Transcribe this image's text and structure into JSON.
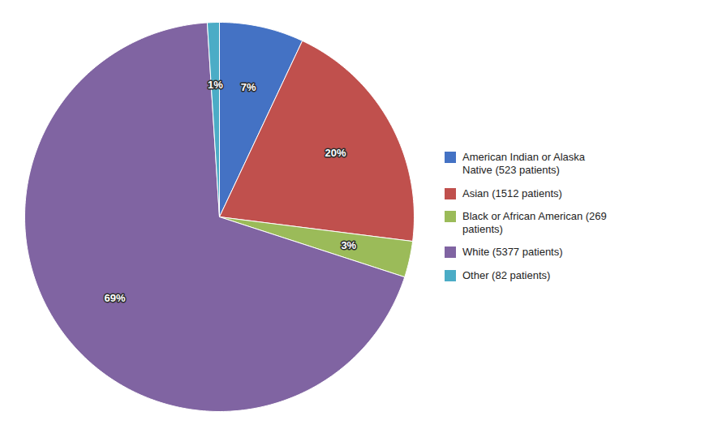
{
  "chart_data": {
    "type": "pie",
    "categories": [
      "American Indian or Alaska\nNative (523 patients)",
      "Asian (1512 patients)",
      "Black or African American (269\npatients)",
      "White (5377 patients)",
      "Other (82 patients)"
    ],
    "values": [
      7,
      20,
      3,
      69,
      1
    ],
    "value_labels": [
      "7%",
      "20%",
      "3%",
      "69%",
      "1%"
    ],
    "colors": [
      "#4472c4",
      "#c0504d",
      "#9bbb59",
      "#8064a2",
      "#4bacc6"
    ],
    "data_labels": true,
    "legend": "right"
  }
}
